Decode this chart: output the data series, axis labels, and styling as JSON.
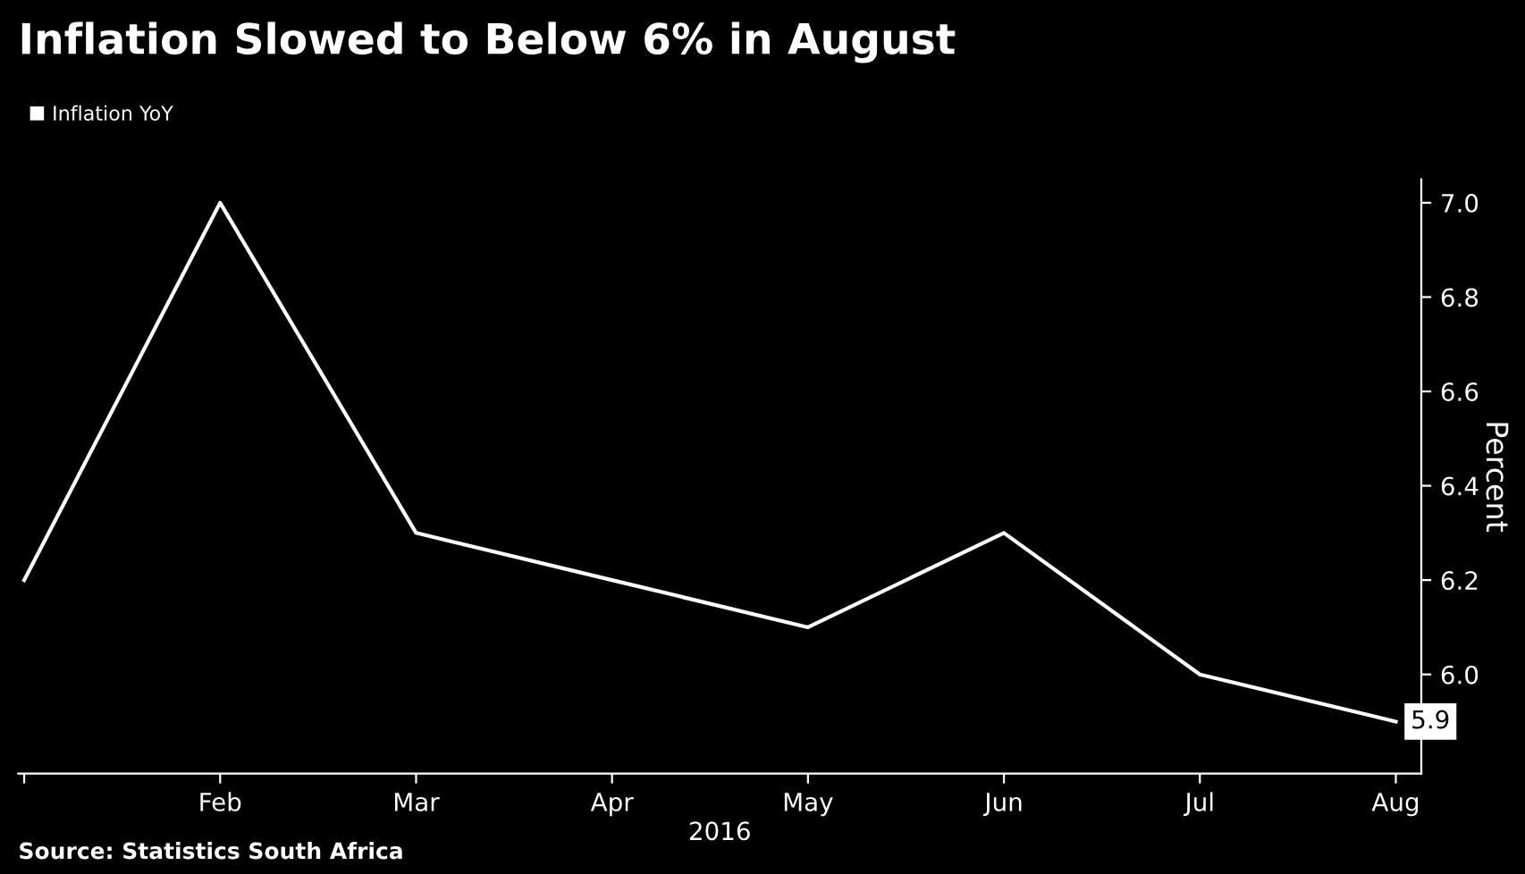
{
  "chart_data": {
    "type": "line",
    "title": "Inflation Slowed to Below 6% in August",
    "xlabel": "2016",
    "ylabel": "Percent",
    "categories": [
      null,
      "Feb",
      "Mar",
      "Apr",
      "May",
      "Jun",
      "Jul",
      "Aug"
    ],
    "series": [
      {
        "name": "Inflation YoY",
        "color": "#ffffff",
        "values": [
          6.2,
          7.0,
          6.3,
          6.2,
          6.1,
          6.3,
          6.0,
          5.9
        ],
        "value_labels": [
          null,
          null,
          null,
          null,
          null,
          null,
          null,
          "5.9"
        ]
      }
    ],
    "ylim": [
      5.79,
      7.05
    ],
    "yticks": [
      {
        "value": 6.0,
        "label": "6.0"
      },
      {
        "value": 6.2,
        "label": "6.2"
      },
      {
        "value": 6.4,
        "label": "6.4"
      },
      {
        "value": 6.6,
        "label": "6.6"
      },
      {
        "value": 6.8,
        "label": "6.8"
      },
      {
        "value": 7.0,
        "label": "7.0"
      }
    ],
    "grid": false,
    "legend": "top left",
    "annotations": [
      "Source: Statistics South Africa"
    ]
  }
}
